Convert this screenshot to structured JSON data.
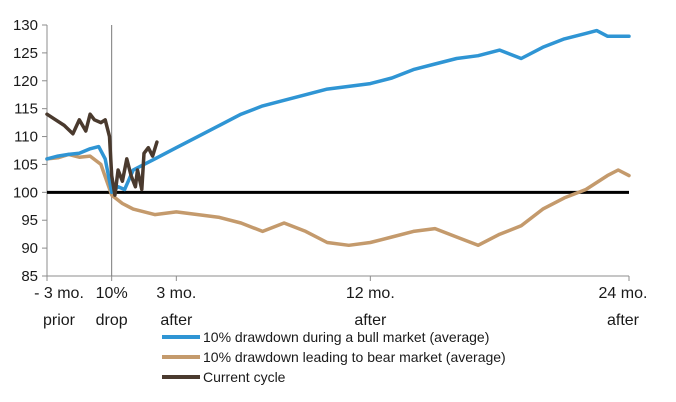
{
  "chart_data": {
    "type": "line",
    "title": "",
    "xlabel": "",
    "ylabel": "",
    "ylim": [
      85,
      130
    ],
    "yticks": [
      85,
      90,
      95,
      100,
      105,
      110,
      115,
      120,
      125,
      130
    ],
    "xlim": [
      -3,
      24
    ],
    "xticks": [
      {
        "x": -3,
        "lines": [
          "- 3 mo.",
          "prior"
        ]
      },
      {
        "x": 0,
        "lines": [
          "10%",
          "drop"
        ]
      },
      {
        "x": 3,
        "lines": [
          "3 mo.",
          "after"
        ]
      },
      {
        "x": 12,
        "lines": [
          "12 mo.",
          "after"
        ]
      },
      {
        "x": 24,
        "lines": [
          "24 mo.",
          "after"
        ]
      }
    ],
    "x_unit": "months relative to 10% drop",
    "reference_lines": [
      {
        "axis": "y",
        "value": 100,
        "style": "solid-black-thick"
      },
      {
        "axis": "x",
        "value": 0,
        "style": "thin-gray"
      }
    ],
    "legend_position": "bottom",
    "grid": false,
    "series": [
      {
        "name": "10% drawdown during a bull market (average)",
        "color": "#2f95d4",
        "points": [
          [
            -3,
            106
          ],
          [
            -2.5,
            106.5
          ],
          [
            -2,
            106.8
          ],
          [
            -1.5,
            107
          ],
          [
            -1,
            107.8
          ],
          [
            -0.6,
            108.2
          ],
          [
            -0.3,
            106
          ],
          [
            0,
            100
          ],
          [
            0.3,
            101
          ],
          [
            0.6,
            100.5
          ],
          [
            1,
            104
          ],
          [
            1.5,
            105
          ],
          [
            2,
            106
          ],
          [
            3,
            108
          ],
          [
            4,
            110
          ],
          [
            5,
            112
          ],
          [
            6,
            114
          ],
          [
            7,
            115.5
          ],
          [
            8,
            116.5
          ],
          [
            9,
            117.5
          ],
          [
            10,
            118.5
          ],
          [
            11,
            119
          ],
          [
            12,
            119.5
          ],
          [
            13,
            120.5
          ],
          [
            14,
            122
          ],
          [
            15,
            123
          ],
          [
            16,
            124
          ],
          [
            17,
            124.5
          ],
          [
            18,
            125.5
          ],
          [
            19,
            124
          ],
          [
            20,
            126
          ],
          [
            21,
            127.5
          ],
          [
            22,
            128.5
          ],
          [
            22.5,
            129
          ],
          [
            23,
            128
          ],
          [
            24,
            128
          ]
        ]
      },
      {
        "name": "10% drawdown leading to bear market (average)",
        "color": "#c49a6c",
        "points": [
          [
            -3,
            106
          ],
          [
            -2.5,
            106.2
          ],
          [
            -2,
            106.8
          ],
          [
            -1.5,
            106.3
          ],
          [
            -1,
            106.5
          ],
          [
            -0.5,
            105
          ],
          [
            0,
            99.5
          ],
          [
            0.5,
            98
          ],
          [
            1,
            97
          ],
          [
            2,
            96
          ],
          [
            3,
            96.5
          ],
          [
            4,
            96
          ],
          [
            5,
            95.5
          ],
          [
            6,
            94.5
          ],
          [
            7,
            93
          ],
          [
            8,
            94.5
          ],
          [
            9,
            93
          ],
          [
            10,
            91
          ],
          [
            11,
            90.5
          ],
          [
            12,
            91
          ],
          [
            13,
            92
          ],
          [
            14,
            93
          ],
          [
            15,
            93.5
          ],
          [
            16,
            92
          ],
          [
            17,
            90.5
          ],
          [
            18,
            92.5
          ],
          [
            19,
            94
          ],
          [
            20,
            97
          ],
          [
            21,
            99
          ],
          [
            22,
            100.5
          ],
          [
            23,
            103
          ],
          [
            23.5,
            104
          ],
          [
            24,
            103
          ]
        ]
      },
      {
        "name": "Current cycle",
        "color": "#4a3a2e",
        "points": [
          [
            -3,
            114
          ],
          [
            -2.6,
            113
          ],
          [
            -2.2,
            112
          ],
          [
            -1.8,
            110.5
          ],
          [
            -1.5,
            113
          ],
          [
            -1.2,
            111
          ],
          [
            -1,
            114
          ],
          [
            -0.8,
            113
          ],
          [
            -0.5,
            112.5
          ],
          [
            -0.3,
            113
          ],
          [
            -0.1,
            110
          ],
          [
            0,
            103
          ],
          [
            0.15,
            99.5
          ],
          [
            0.3,
            104
          ],
          [
            0.5,
            102
          ],
          [
            0.7,
            106
          ],
          [
            0.9,
            103
          ],
          [
            1.1,
            101
          ],
          [
            1.2,
            104
          ],
          [
            1.4,
            100.5
          ],
          [
            1.5,
            107
          ],
          [
            1.7,
            108
          ],
          [
            1.9,
            106.5
          ],
          [
            2.1,
            109
          ]
        ]
      }
    ]
  }
}
